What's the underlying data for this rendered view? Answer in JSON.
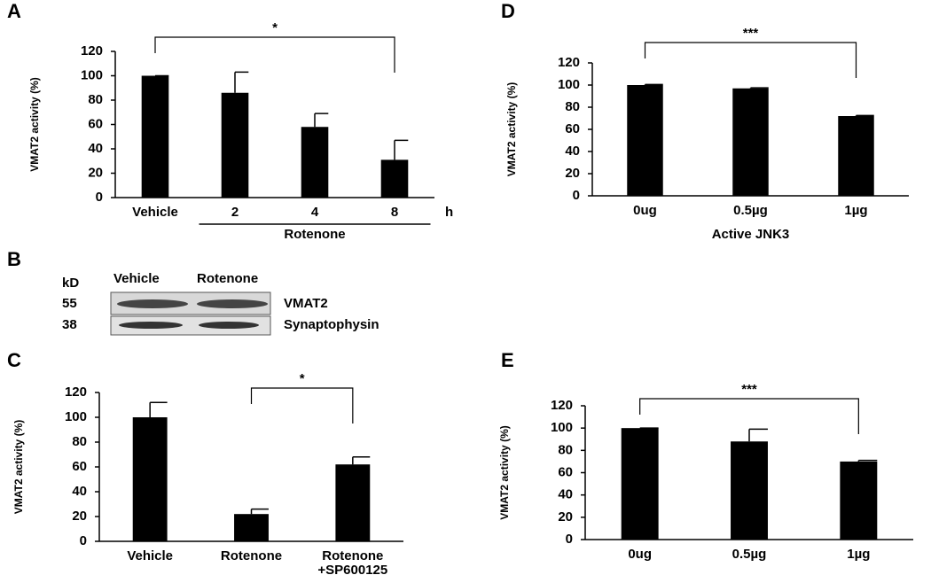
{
  "chart_data": [
    {
      "type": "bar",
      "panel": "A",
      "ylabel": "VMAT2 activity (%)",
      "categories": [
        "Vehicle",
        "2",
        "4",
        "8"
      ],
      "values": [
        100,
        86,
        58,
        31
      ],
      "errors": [
        0,
        17,
        11,
        16
      ],
      "color": "#000000",
      "ylim": [
        0,
        120
      ],
      "yticks": [
        0,
        20,
        40,
        60,
        80,
        100,
        120
      ],
      "group": {
        "label": "Rotenone",
        "from": 1,
        "to": 3,
        "unit": "h"
      },
      "significance": [
        {
          "from": 0,
          "to": 3,
          "label": "*"
        }
      ]
    },
    {
      "type": "bar",
      "panel": "D",
      "ylabel": "VMAT2 activity (%)",
      "xlabel": "Active JNK3",
      "categories": [
        "0ug",
        "0.5µg",
        "1µg"
      ],
      "values": [
        100,
        97,
        72
      ],
      "errors": [
        0.5,
        0.5,
        0.5
      ],
      "color": "#000000",
      "ylim": [
        0,
        120
      ],
      "yticks": [
        0,
        20,
        40,
        60,
        80,
        100,
        120
      ],
      "significance": [
        {
          "from": 0,
          "to": 2,
          "label": "***"
        }
      ]
    },
    {
      "type": "bar",
      "panel": "C",
      "ylabel": "VMAT2 activity (%)",
      "categories": [
        "Vehicle",
        "Rotenone",
        "Rotenone +SP600125"
      ],
      "values": [
        100,
        22,
        62
      ],
      "errors": [
        12,
        4,
        6
      ],
      "color": "#000000",
      "ylim": [
        0,
        120
      ],
      "yticks": [
        0,
        20,
        40,
        60,
        80,
        100,
        120
      ],
      "significance": [
        {
          "from": 1,
          "to": 2,
          "label": "*"
        }
      ]
    },
    {
      "type": "bar",
      "panel": "E",
      "ylabel": "VMAT2 activity (%)",
      "categories": [
        "0ug",
        "0.5µg",
        "1µg"
      ],
      "values": [
        100,
        88,
        70
      ],
      "errors": [
        0,
        11,
        1
      ],
      "color": "#000000",
      "ylim": [
        0,
        120
      ],
      "yticks": [
        0,
        20,
        40,
        60,
        80,
        100,
        120
      ],
      "significance": [
        {
          "from": 0,
          "to": 2,
          "label": "***"
        }
      ]
    }
  ],
  "blot": {
    "panel": "B",
    "unit": "kD",
    "lanes": [
      "Vehicle",
      "Rotenone"
    ],
    "bands": [
      {
        "size": 55,
        "name": "VMAT2"
      },
      {
        "size": 38,
        "name": "Synaptophysin"
      }
    ]
  }
}
